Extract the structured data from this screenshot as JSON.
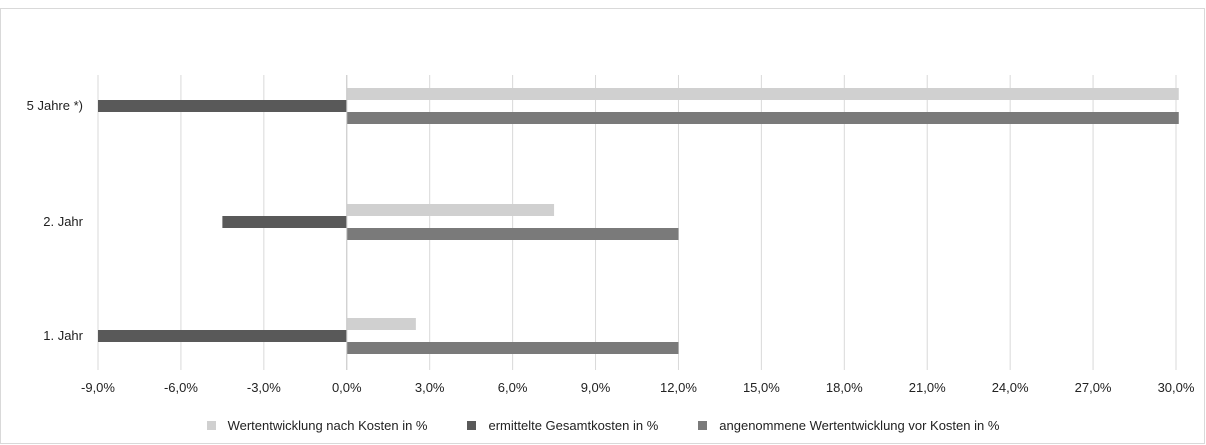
{
  "chart_data": {
    "type": "bar",
    "orientation": "horizontal",
    "categories": [
      "1. Jahr",
      "2. Jahr",
      "5 Jahre *)"
    ],
    "series": [
      {
        "name": "Wertentwicklung nach Kosten in %",
        "values": [
          2.5,
          7.5,
          30.1
        ],
        "color": "#d0d0d0"
      },
      {
        "name": "ermittelte Gesamtkosten in %",
        "values": [
          -9.0,
          -4.5,
          -9.0
        ],
        "color": "#595959"
      },
      {
        "name": "angenommene Wertentwicklung vor Kosten in %",
        "values": [
          12.0,
          12.0,
          30.1
        ],
        "color": "#7a7a7a"
      }
    ],
    "x_ticks": [
      "-9,0%",
      "-6,0%",
      "-3,0%",
      "0,0%",
      "3,0%",
      "6,0%",
      "9,0%",
      "12,0%",
      "15,0%",
      "18,0%",
      "21,0%",
      "24,0%",
      "27,0%",
      "30,0%"
    ],
    "xlim": [
      -9,
      30
    ],
    "grid": "vertical",
    "legend_position": "bottom"
  }
}
